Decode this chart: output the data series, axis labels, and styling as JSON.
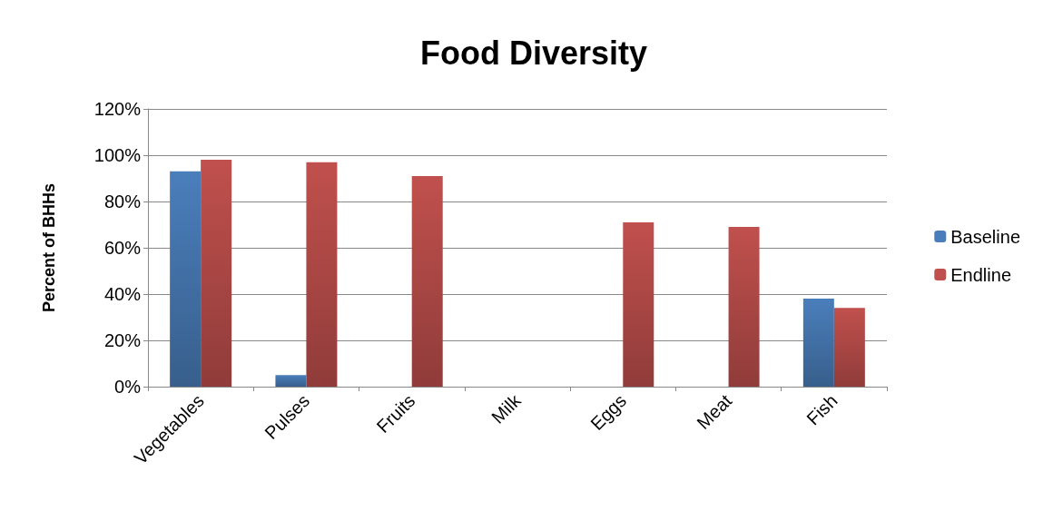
{
  "chart_data": {
    "type": "bar",
    "title": "Food Diversity",
    "ylabel": "Percent of BHHs",
    "categories": [
      "Vegetables",
      "Pulses",
      "Fruits",
      "Milk",
      "Eggs",
      "Meat",
      "Fish"
    ],
    "series": [
      {
        "name": "Baseline",
        "color": "#4a7ebb",
        "values": [
          93,
          5,
          0,
          0,
          0,
          0,
          38
        ]
      },
      {
        "name": "Endline",
        "color": "#c0504d",
        "values": [
          98,
          97,
          91,
          0,
          71,
          69,
          34
        ]
      }
    ],
    "ylim": [
      0,
      120
    ],
    "yticks": [
      {
        "value": 0,
        "label": "0%"
      },
      {
        "value": 20,
        "label": "20%"
      },
      {
        "value": 40,
        "label": "40%"
      },
      {
        "value": 60,
        "label": "60%"
      },
      {
        "value": 80,
        "label": "80%"
      },
      {
        "value": 100,
        "label": "100%"
      },
      {
        "value": 120,
        "label": "120%"
      }
    ],
    "grid": "y",
    "legend": "right"
  }
}
